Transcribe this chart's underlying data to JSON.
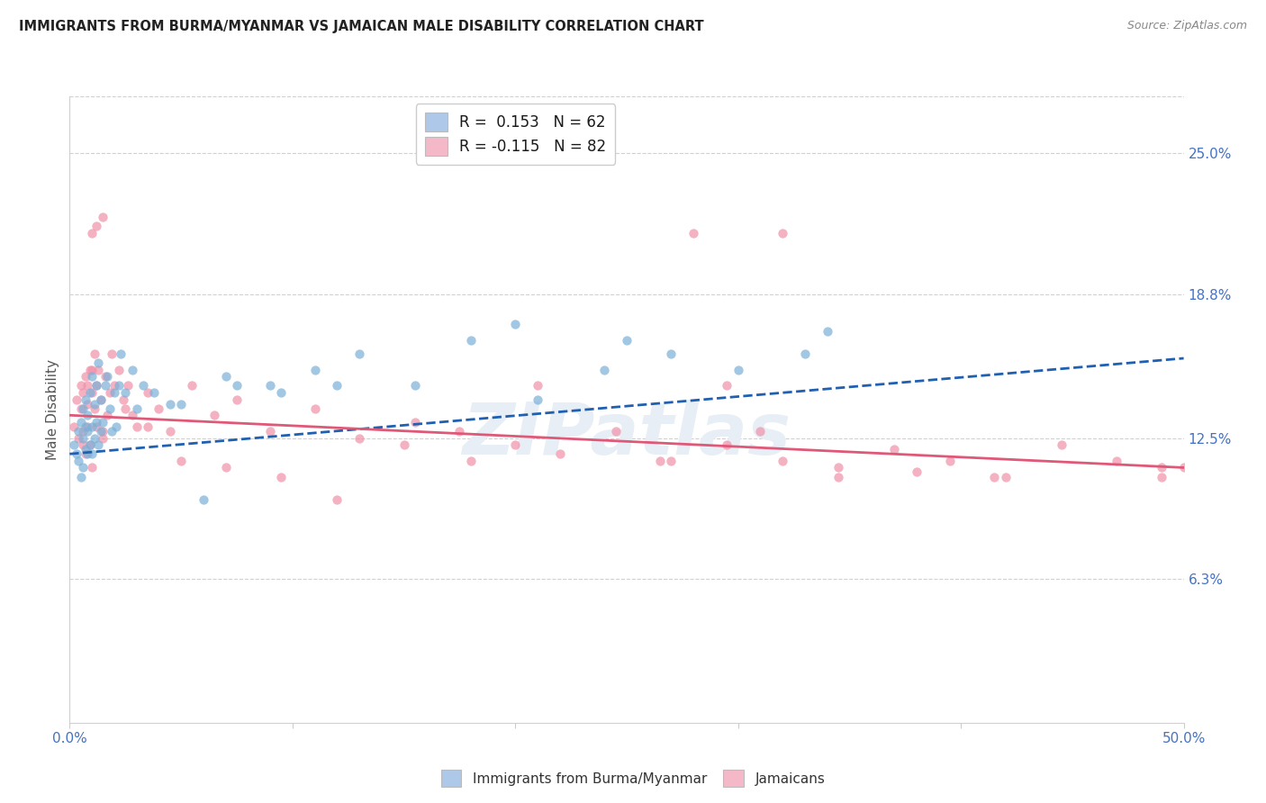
{
  "title": "IMMIGRANTS FROM BURMA/MYANMAR VS JAMAICAN MALE DISABILITY CORRELATION CHART",
  "source": "Source: ZipAtlas.com",
  "ylabel": "Male Disability",
  "right_yticks": [
    "25.0%",
    "18.8%",
    "12.5%",
    "6.3%"
  ],
  "right_ytick_vals": [
    0.25,
    0.188,
    0.125,
    0.063
  ],
  "legend1_label": "R =  0.153   N = 62",
  "legend2_label": "R = -0.115   N = 82",
  "legend1_color": "#adc8e8",
  "legend2_color": "#f5b8c8",
  "scatter1_color": "#7ab0d8",
  "scatter2_color": "#f090a8",
  "line1_color": "#2060b0",
  "line2_color": "#e05878",
  "watermark": "ZIPatlas",
  "xlim": [
    0.0,
    0.5
  ],
  "ylim": [
    0.0,
    0.275
  ],
  "trendline1_x": [
    0.0,
    0.5
  ],
  "trendline1_y": [
    0.118,
    0.16
  ],
  "trendline2_x": [
    0.0,
    0.5
  ],
  "trendline2_y": [
    0.135,
    0.112
  ],
  "scatter1_x": [
    0.002,
    0.003,
    0.004,
    0.004,
    0.005,
    0.005,
    0.006,
    0.006,
    0.006,
    0.007,
    0.007,
    0.007,
    0.008,
    0.008,
    0.008,
    0.009,
    0.009,
    0.01,
    0.01,
    0.01,
    0.011,
    0.011,
    0.012,
    0.012,
    0.013,
    0.013,
    0.014,
    0.014,
    0.015,
    0.016,
    0.017,
    0.018,
    0.019,
    0.02,
    0.021,
    0.022,
    0.023,
    0.025,
    0.028,
    0.03,
    0.033,
    0.038,
    0.045,
    0.06,
    0.075,
    0.09,
    0.11,
    0.13,
    0.155,
    0.18,
    0.21,
    0.24,
    0.27,
    0.3,
    0.33,
    0.2,
    0.25,
    0.34,
    0.12,
    0.095,
    0.07,
    0.05
  ],
  "scatter1_y": [
    0.122,
    0.118,
    0.128,
    0.115,
    0.132,
    0.108,
    0.125,
    0.138,
    0.112,
    0.13,
    0.12,
    0.142,
    0.118,
    0.128,
    0.135,
    0.122,
    0.145,
    0.118,
    0.13,
    0.152,
    0.125,
    0.14,
    0.132,
    0.148,
    0.122,
    0.158,
    0.128,
    0.142,
    0.132,
    0.148,
    0.152,
    0.138,
    0.128,
    0.145,
    0.13,
    0.148,
    0.162,
    0.145,
    0.155,
    0.138,
    0.148,
    0.145,
    0.14,
    0.098,
    0.148,
    0.148,
    0.155,
    0.162,
    0.148,
    0.168,
    0.142,
    0.155,
    0.162,
    0.155,
    0.162,
    0.175,
    0.168,
    0.172,
    0.148,
    0.145,
    0.152,
    0.14
  ],
  "scatter2_x": [
    0.002,
    0.003,
    0.004,
    0.005,
    0.005,
    0.006,
    0.006,
    0.007,
    0.007,
    0.008,
    0.008,
    0.009,
    0.009,
    0.01,
    0.01,
    0.011,
    0.011,
    0.012,
    0.012,
    0.013,
    0.014,
    0.015,
    0.016,
    0.017,
    0.018,
    0.019,
    0.02,
    0.022,
    0.024,
    0.026,
    0.028,
    0.03,
    0.035,
    0.04,
    0.045,
    0.055,
    0.065,
    0.075,
    0.09,
    0.11,
    0.13,
    0.155,
    0.175,
    0.2,
    0.22,
    0.245,
    0.27,
    0.295,
    0.32,
    0.345,
    0.37,
    0.395,
    0.42,
    0.445,
    0.47,
    0.49,
    0.5,
    0.31,
    0.265,
    0.49,
    0.295,
    0.38,
    0.21,
    0.345,
    0.415,
    0.18,
    0.15,
    0.12,
    0.095,
    0.07,
    0.05,
    0.035,
    0.025,
    0.015,
    0.01,
    0.008,
    0.006,
    0.01,
    0.012,
    0.015,
    0.28,
    0.32
  ],
  "scatter2_y": [
    0.13,
    0.142,
    0.125,
    0.138,
    0.148,
    0.128,
    0.145,
    0.152,
    0.118,
    0.13,
    0.148,
    0.122,
    0.155,
    0.112,
    0.145,
    0.138,
    0.162,
    0.13,
    0.148,
    0.155,
    0.142,
    0.128,
    0.152,
    0.135,
    0.145,
    0.162,
    0.148,
    0.155,
    0.142,
    0.148,
    0.135,
    0.13,
    0.145,
    0.138,
    0.128,
    0.148,
    0.135,
    0.142,
    0.128,
    0.138,
    0.125,
    0.132,
    0.128,
    0.122,
    0.118,
    0.128,
    0.115,
    0.122,
    0.115,
    0.112,
    0.12,
    0.115,
    0.108,
    0.122,
    0.115,
    0.112,
    0.112,
    0.128,
    0.115,
    0.108,
    0.148,
    0.11,
    0.148,
    0.108,
    0.108,
    0.115,
    0.122,
    0.098,
    0.108,
    0.112,
    0.115,
    0.13,
    0.138,
    0.125,
    0.155,
    0.14,
    0.122,
    0.215,
    0.218,
    0.222,
    0.215,
    0.215
  ]
}
